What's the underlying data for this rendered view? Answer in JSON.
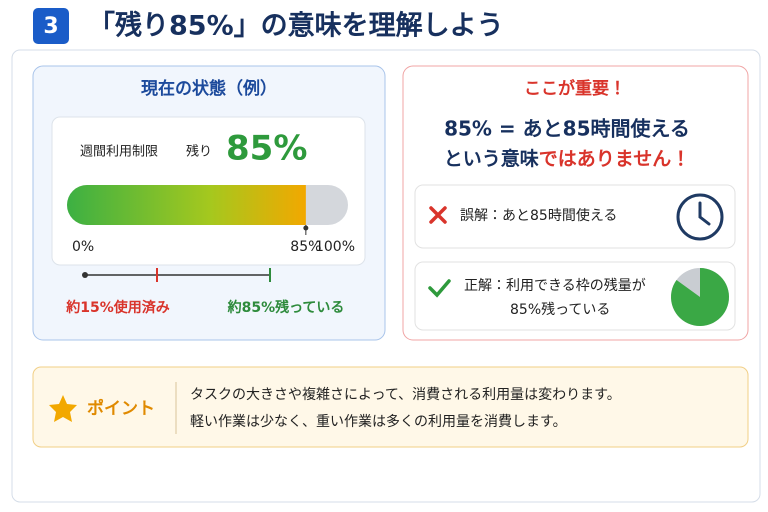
{
  "header": {
    "number": "3",
    "title": "「残り85%」の意味を理解しよう"
  },
  "current_state": {
    "title": "現在の状態（例）",
    "limit_label": "週間利用制限",
    "remaining_label": "残り",
    "remaining_value": "85%",
    "gauge": {
      "value": 85,
      "max": 100,
      "ticks": [
        {
          "value": 0,
          "label": "0%"
        },
        {
          "value": 85,
          "label": "85%"
        },
        {
          "value": 100,
          "label": "100%"
        }
      ]
    },
    "used_note": "約15%使用済み",
    "remaining_note": "約85%残っている"
  },
  "important": {
    "title": "ここが重要！",
    "line1": "85% = あと85時間使える",
    "line2_plain": "という意味",
    "line2_emphasis": "ではありません！",
    "misconception": "誤解：あと85時間使える",
    "correct_line1": "正解：利用できる枠の残量が",
    "correct_line2": "85%残っている"
  },
  "point": {
    "label": "ポイント",
    "lines": [
      "タスクの大きさや複雑さによって、消費される利用量は変わります。",
      "軽い作業は少なく、重い作業は多くの利用量を消費します。"
    ]
  }
}
